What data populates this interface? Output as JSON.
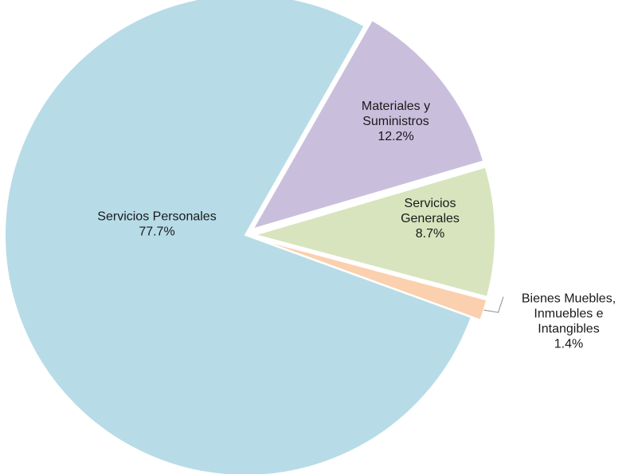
{
  "chart_data": {
    "type": "pie",
    "title": "",
    "slices": [
      {
        "name": "Servicios Personales",
        "label_lines": [
          "Servicios  Personales"
        ],
        "value": 77.7,
        "value_label": "77.7%",
        "color": "#b7dce7",
        "explode": false
      },
      {
        "name": "Materiales y Suministros",
        "label_lines": [
          "Materiales  y",
          "Suministros"
        ],
        "value": 12.2,
        "value_label": "12.2%",
        "color": "#c9bfdd",
        "explode": true
      },
      {
        "name": "Servicios Generales",
        "label_lines": [
          "Servicios",
          "Generales"
        ],
        "value": 8.7,
        "value_label": "8.7%",
        "color": "#d7e4bd",
        "explode": true
      },
      {
        "name": "Bienes Muebles, Inmuebles e Intangibles",
        "label_lines": [
          "Bienes Muebles,",
          "Inmuebles  e",
          "Intangibles"
        ],
        "value": 1.4,
        "value_label": "1.4%",
        "color": "#fbd0ae",
        "explode": true
      }
    ],
    "legend": "none",
    "labels_on_slices": true
  }
}
